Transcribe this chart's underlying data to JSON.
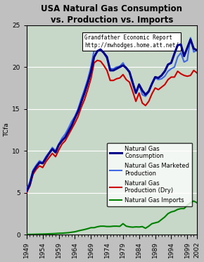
{
  "title": "USA Natural Gas Consumption\nvs. Production vs. Imports",
  "ylabel": "TCfa",
  "watermark_line1": "Grandfather Economic Report",
  "watermark_line2": "http://mwhodges.home.att.net/",
  "years": [
    1949,
    1950,
    1951,
    1952,
    1953,
    1954,
    1955,
    1956,
    1957,
    1958,
    1959,
    1960,
    1961,
    1962,
    1963,
    1964,
    1965,
    1966,
    1967,
    1968,
    1969,
    1970,
    1971,
    1972,
    1973,
    1974,
    1975,
    1976,
    1977,
    1978,
    1979,
    1980,
    1981,
    1982,
    1983,
    1984,
    1985,
    1986,
    1987,
    1988,
    1989,
    1990,
    1991,
    1992,
    1993,
    1994,
    1995,
    1996,
    1997,
    1998,
    1999,
    2000,
    2001,
    2002
  ],
  "consumption": [
    5.2,
    6.0,
    7.5,
    8.1,
    8.6,
    8.5,
    9.1,
    9.7,
    10.2,
    9.8,
    10.7,
    11.2,
    11.6,
    12.3,
    13.0,
    13.9,
    14.7,
    15.8,
    16.9,
    18.1,
    19.4,
    21.2,
    21.9,
    22.1,
    21.7,
    21.2,
    19.6,
    19.6,
    19.8,
    20.0,
    20.2,
    19.9,
    19.4,
    18.1,
    16.9,
    17.9,
    17.2,
    16.7,
    17.1,
    18.0,
    18.8,
    18.7,
    19.0,
    19.5,
    20.3,
    20.5,
    21.6,
    22.6,
    22.7,
    21.3,
    22.3,
    23.3,
    22.2,
    22.0
  ],
  "marketed_production": [
    5.4,
    6.3,
    7.7,
    8.3,
    8.8,
    8.6,
    9.3,
    9.8,
    10.4,
    10.0,
    10.8,
    11.5,
    12.0,
    12.7,
    13.5,
    14.1,
    15.0,
    16.2,
    17.3,
    18.5,
    20.0,
    22.0,
    22.3,
    22.2,
    21.7,
    21.0,
    19.8,
    19.8,
    20.0,
    20.1,
    20.5,
    19.8,
    19.5,
    18.3,
    16.9,
    18.0,
    16.7,
    16.5,
    17.0,
    18.0,
    18.7,
    18.5,
    18.6,
    18.9,
    19.5,
    19.8,
    20.0,
    21.2,
    21.7,
    20.6,
    20.8,
    23.5,
    21.8,
    22.0
  ],
  "dry_production": [
    5.0,
    5.8,
    7.2,
    7.8,
    8.2,
    8.0,
    8.7,
    9.2,
    9.7,
    9.3,
    10.1,
    10.8,
    11.2,
    11.9,
    12.6,
    13.3,
    14.1,
    15.2,
    16.1,
    17.3,
    18.6,
    20.5,
    20.8,
    20.7,
    20.2,
    19.6,
    18.4,
    18.4,
    18.6,
    18.7,
    19.1,
    18.5,
    18.2,
    17.1,
    15.9,
    16.9,
    15.7,
    15.4,
    15.9,
    16.8,
    17.5,
    17.3,
    17.6,
    17.9,
    18.5,
    18.8,
    18.8,
    19.5,
    19.2,
    19.0,
    18.9,
    19.0,
    19.6,
    19.3
  ],
  "imports": [
    0.02,
    0.02,
    0.03,
    0.04,
    0.05,
    0.06,
    0.07,
    0.09,
    0.1,
    0.12,
    0.15,
    0.16,
    0.19,
    0.22,
    0.28,
    0.33,
    0.43,
    0.52,
    0.6,
    0.7,
    0.82,
    0.82,
    0.93,
    1.0,
    1.0,
    0.96,
    0.96,
    1.0,
    1.0,
    0.98,
    1.3,
    1.0,
    0.92,
    0.88,
    0.92,
    0.9,
    0.95,
    0.75,
    1.0,
    1.3,
    1.4,
    1.5,
    1.8,
    2.1,
    2.5,
    2.7,
    2.8,
    3.0,
    3.1,
    3.1,
    3.5,
    3.8,
    4.0,
    3.8
  ],
  "consumption_color": "#00008B",
  "marketed_color": "#4169E1",
  "dry_color": "#CC0000",
  "imports_color": "#008000",
  "fig_bg": "#c0c0c0",
  "plot_bg": "#c8d8c8",
  "ylim": [
    0,
    25
  ],
  "xlim": [
    1949,
    2002
  ],
  "title_fontsize": 8.5,
  "label_fontsize": 6.5,
  "tick_fontsize": 6.5,
  "legend_fontsize": 6,
  "watermark_fontsize": 5.5
}
